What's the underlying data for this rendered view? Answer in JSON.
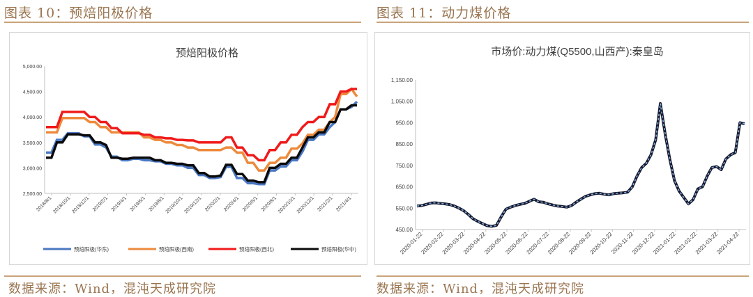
{
  "figures": [
    {
      "heading": "图表 10：预焙阳极价格",
      "source": "数据来源：Wind，混沌天成研究院"
    },
    {
      "heading": "图表 11：动力煤价格",
      "source": "数据来源：Wind，混沌天成研究院"
    }
  ],
  "chart_data": [
    {
      "type": "line",
      "title": "预焙阳极价格",
      "xlabel": "",
      "ylabel": "",
      "ylim": [
        2500,
        5000
      ],
      "yticks": [
        2500,
        3000,
        3500,
        4000,
        4500,
        5000
      ],
      "ytick_labels": [
        "2,500.00",
        "3,000.00",
        "3,500.00",
        "4,000.00",
        "4,500.00",
        "5,000.00"
      ],
      "xtick_labels": [
        "2018/8/1",
        "2018/10/1",
        "2018/12/1",
        "2019/2/1",
        "2019/4/1",
        "2019/6/1",
        "2019/8/1",
        "2019/10/1",
        "2019/12/1",
        "2020/2/1",
        "2020/4/1",
        "2020/6/1",
        "2020/8/1",
        "2020/10/1",
        "2020/12/1",
        "2021/2/1",
        "2021/4/1"
      ],
      "legend_position": "bottom",
      "grid": false,
      "series": [
        {
          "name": "预焙阳极(华东)",
          "color": "#4a78c2",
          "width": 3.5,
          "values": [
            3300,
            3300,
            3550,
            3550,
            3680,
            3680,
            3680,
            3620,
            3620,
            3460,
            3460,
            3400,
            3220,
            3220,
            3150,
            3150,
            3180,
            3180,
            3150,
            3150,
            3130,
            3130,
            3080,
            3080,
            3050,
            3050,
            3000,
            3000,
            2860,
            2860,
            2800,
            2800,
            2820,
            3020,
            3020,
            2800,
            2800,
            2700,
            2700,
            2680,
            2680,
            2950,
            2950,
            3030,
            3030,
            3150,
            3150,
            3320,
            3550,
            3550,
            3660,
            3660,
            3800,
            3900,
            4150,
            4150,
            4200,
            4300
          ]
        },
        {
          "name": "预焙阳极(西南)",
          "color": "#ed8a3c",
          "width": 3.5,
          "values": [
            3700,
            3700,
            3700,
            3980,
            3980,
            3980,
            3980,
            3980,
            3900,
            3900,
            3800,
            3800,
            3700,
            3700,
            3700,
            3700,
            3700,
            3700,
            3600,
            3600,
            3550,
            3550,
            3500,
            3500,
            3450,
            3450,
            3400,
            3400,
            3350,
            3350,
            3350,
            3350,
            3350,
            3400,
            3400,
            3300,
            3300,
            3100,
            3100,
            2950,
            2950,
            3100,
            3100,
            3200,
            3200,
            3380,
            3380,
            3480,
            3650,
            3650,
            3750,
            3750,
            3900,
            4000,
            4450,
            4450,
            4550,
            4400
          ]
        },
        {
          "name": "预焙阳极(西北)",
          "color": "#f01a1a",
          "width": 3.5,
          "values": [
            3800,
            3800,
            3800,
            4100,
            4100,
            4100,
            4100,
            4100,
            4000,
            4000,
            3900,
            3900,
            3780,
            3780,
            3680,
            3680,
            3680,
            3680,
            3650,
            3650,
            3600,
            3600,
            3580,
            3580,
            3550,
            3550,
            3540,
            3540,
            3500,
            3500,
            3500,
            3500,
            3500,
            3600,
            3600,
            3400,
            3400,
            3250,
            3250,
            3150,
            3150,
            3350,
            3350,
            3500,
            3500,
            3650,
            3650,
            3800,
            3900,
            3900,
            4000,
            4000,
            4250,
            4250,
            4500,
            4500,
            4550,
            4550
          ]
        },
        {
          "name": "预焙阳极(华中)",
          "color": "#0a0a0a",
          "width": 3.5,
          "values": [
            3200,
            3200,
            3500,
            3500,
            3660,
            3660,
            3660,
            3640,
            3640,
            3500,
            3500,
            3450,
            3200,
            3200,
            3180,
            3180,
            3200,
            3200,
            3200,
            3200,
            3150,
            3150,
            3100,
            3100,
            3080,
            3080,
            3050,
            3050,
            2900,
            2900,
            2830,
            2830,
            2850,
            3060,
            3060,
            2880,
            2880,
            2750,
            2750,
            2720,
            2720,
            3000,
            3000,
            3080,
            3080,
            3200,
            3200,
            3400,
            3600,
            3600,
            3700,
            3700,
            3900,
            3900,
            4150,
            4150,
            4230,
            4230
          ]
        }
      ]
    },
    {
      "type": "line",
      "title": "市场价:动力煤(Q5500,山西产):秦皇岛",
      "xlabel": "",
      "ylabel": "",
      "ylim": [
        450,
        1150
      ],
      "yticks": [
        450,
        550,
        650,
        750,
        850,
        950,
        1050,
        1150
      ],
      "ytick_labels": [
        "450.00",
        "550.00",
        "650.00",
        "750.00",
        "850.00",
        "950.00",
        "1,050.00",
        "1,150.00"
      ],
      "xtick_labels": [
        "2020-01-22",
        "2020-02-22",
        "2020-03-22",
        "2020-04-22",
        "2020-05-22",
        "2020-06-22",
        "2020-07-22",
        "2020-08-22",
        "2020-09-22",
        "2020-10-22",
        "2020-11-22",
        "2020-12-22",
        "2021-01-22",
        "2021-02-22",
        "2021-03-22",
        "2021-04-22"
      ],
      "legend_position": "none",
      "grid": false,
      "series": [
        {
          "color": "#1a1a2e",
          "values": [
            560,
            562,
            568,
            574,
            575,
            572,
            570,
            567,
            560,
            550,
            538,
            520,
            500,
            488,
            478,
            468,
            465,
            470,
            510,
            545,
            555,
            562,
            568,
            572,
            582,
            592,
            580,
            578,
            570,
            565,
            560,
            558,
            555,
            562,
            578,
            592,
            605,
            612,
            618,
            620,
            615,
            612,
            618,
            620,
            622,
            625,
            650,
            700,
            740,
            760,
            800,
            870,
            1040,
            900,
            780,
            680,
            630,
            600,
            570,
            590,
            640,
            650,
            700,
            740,
            745,
            730,
            780,
            800,
            810,
            950,
            945
          ]
        }
      ]
    }
  ]
}
